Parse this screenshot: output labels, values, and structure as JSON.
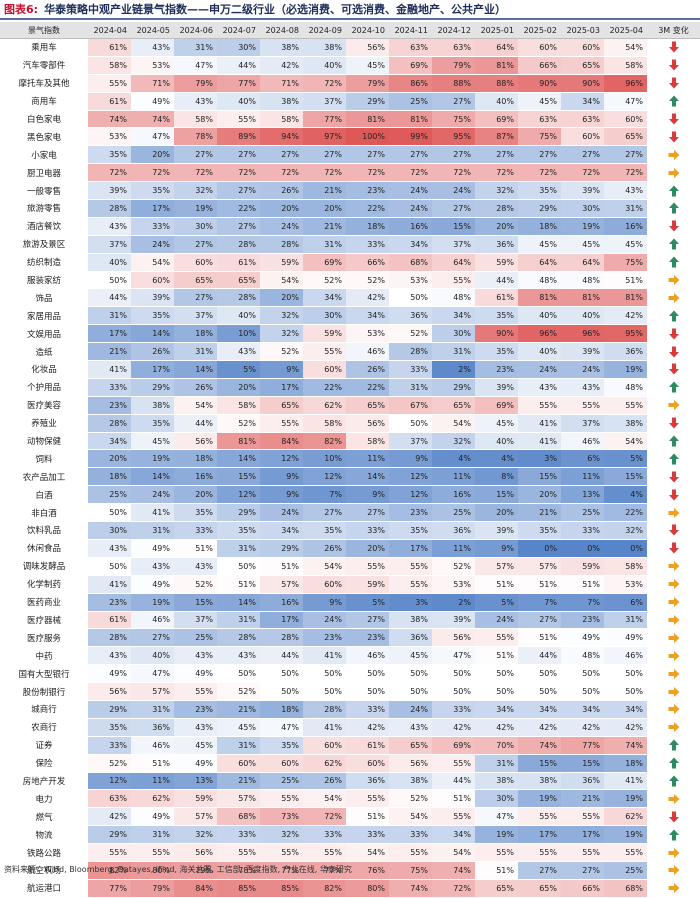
{
  "title": {
    "label": "图表6:",
    "text": "华泰策略中观产业链景气指数——申万二级行业（必选消费、可选消费、金融地产、公共产业）"
  },
  "source": "资料来源：Wind, Bloomberg, Datayes, iFind, 海关总署, 工信部, 百度指数, 产业在线, 华泰研究",
  "header": {
    "name": "景气指数",
    "trend": "3M 变化"
  },
  "colors": {
    "red": "#d93a3a",
    "blue": "#3a6fbf",
    "green": "#2e8a62",
    "orange": "#f0a020"
  },
  "chart_data": {
    "type": "heatmap",
    "title": "华泰策略中观产业链景气指数——申万二级行业（必选消费、可选消费、金融地产、公共产业）",
    "columns": [
      "2024-04",
      "2024-05",
      "2024-06",
      "2024-07",
      "2024-08",
      "2024-09",
      "2024-10",
      "2024-11",
      "2024-12",
      "2025-01",
      "2025-02",
      "2025-03",
      "2025-04"
    ],
    "value_unit": "%",
    "rows": [
      {
        "name": "乘用车",
        "values": [
          61,
          43,
          31,
          30,
          38,
          38,
          56,
          63,
          63,
          64,
          60,
          60,
          54
        ],
        "trend": "down"
      },
      {
        "name": "汽车零部件",
        "values": [
          58,
          53,
          47,
          44,
          42,
          40,
          45,
          69,
          79,
          81,
          66,
          65,
          58
        ],
        "trend": "down"
      },
      {
        "name": "摩托车及其他",
        "values": [
          55,
          71,
          79,
          77,
          71,
          72,
          79,
          86,
          88,
          88,
          90,
          90,
          96
        ],
        "trend": "down"
      },
      {
        "name": "商用车",
        "values": [
          61,
          49,
          43,
          40,
          38,
          37,
          29,
          25,
          27,
          40,
          45,
          34,
          47
        ],
        "trend": "up"
      },
      {
        "name": "白色家电",
        "values": [
          74,
          74,
          58,
          55,
          58,
          77,
          81,
          81,
          75,
          69,
          63,
          63,
          60
        ],
        "trend": "down"
      },
      {
        "name": "黑色家电",
        "values": [
          53,
          47,
          78,
          89,
          94,
          97,
          100,
          99,
          95,
          87,
          75,
          60,
          65
        ],
        "trend": "down"
      },
      {
        "name": "小家电",
        "values": [
          35,
          20,
          27,
          27,
          27,
          27,
          27,
          27,
          27,
          27,
          27,
          27,
          27
        ],
        "trend": "flat"
      },
      {
        "name": "厨卫电器",
        "values": [
          72,
          72,
          72,
          72,
          72,
          72,
          72,
          72,
          72,
          72,
          72,
          72,
          72
        ],
        "trend": "flat"
      },
      {
        "name": "一般零售",
        "values": [
          39,
          35,
          32,
          27,
          26,
          21,
          23,
          24,
          24,
          32,
          35,
          39,
          43
        ],
        "trend": "up"
      },
      {
        "name": "旅游零售",
        "values": [
          28,
          17,
          19,
          22,
          20,
          20,
          22,
          24,
          27,
          28,
          29,
          30,
          31
        ],
        "trend": "up"
      },
      {
        "name": "酒店餐饮",
        "values": [
          43,
          33,
          30,
          27,
          24,
          21,
          18,
          16,
          15,
          20,
          18,
          19,
          16
        ],
        "trend": "down"
      },
      {
        "name": "旅游及景区",
        "values": [
          37,
          24,
          27,
          28,
          28,
          31,
          33,
          34,
          37,
          36,
          45,
          45,
          45
        ],
        "trend": "up"
      },
      {
        "name": "纺织制造",
        "values": [
          40,
          54,
          60,
          61,
          59,
          69,
          66,
          68,
          64,
          59,
          64,
          64,
          75
        ],
        "trend": "up"
      },
      {
        "name": "服装家纺",
        "values": [
          50,
          60,
          65,
          65,
          54,
          52,
          52,
          53,
          55,
          44,
          48,
          48,
          51
        ],
        "trend": "flat"
      },
      {
        "name": "饰品",
        "values": [
          44,
          39,
          27,
          28,
          20,
          34,
          42,
          50,
          48,
          61,
          81,
          81,
          81
        ],
        "trend": "flat"
      },
      {
        "name": "家居用品",
        "values": [
          31,
          35,
          37,
          40,
          32,
          30,
          34,
          36,
          34,
          35,
          40,
          40,
          42
        ],
        "trend": "up"
      },
      {
        "name": "文娱用品",
        "values": [
          17,
          14,
          18,
          10,
          32,
          59,
          53,
          52,
          30,
          90,
          96,
          96,
          95
        ],
        "trend": "down"
      },
      {
        "name": "造纸",
        "values": [
          21,
          26,
          31,
          43,
          52,
          55,
          46,
          28,
          31,
          35,
          40,
          39,
          36
        ],
        "trend": "down"
      },
      {
        "name": "化妆品",
        "values": [
          41,
          17,
          14,
          5,
          9,
          60,
          26,
          33,
          2,
          23,
          24,
          24,
          19
        ],
        "trend": "down"
      },
      {
        "name": "个护用品",
        "values": [
          33,
          29,
          26,
          20,
          17,
          22,
          22,
          31,
          29,
          39,
          43,
          43,
          48
        ],
        "trend": "up"
      },
      {
        "name": "医疗美容",
        "values": [
          23,
          38,
          54,
          58,
          65,
          62,
          65,
          67,
          65,
          69,
          55,
          55,
          55
        ],
        "trend": "flat"
      },
      {
        "name": "养殖业",
        "values": [
          28,
          35,
          44,
          52,
          55,
          58,
          56,
          50,
          54,
          45,
          41,
          37,
          38
        ],
        "trend": "down"
      },
      {
        "name": "动物保健",
        "values": [
          34,
          45,
          56,
          81,
          84,
          82,
          58,
          37,
          32,
          40,
          41,
          46,
          54
        ],
        "trend": "up"
      },
      {
        "name": "饲料",
        "values": [
          20,
          19,
          18,
          14,
          12,
          10,
          11,
          9,
          4,
          4,
          3,
          6,
          5
        ],
        "trend": "up"
      },
      {
        "name": "农产品加工",
        "values": [
          18,
          14,
          16,
          15,
          9,
          12,
          14,
          12,
          11,
          8,
          15,
          11,
          15
        ],
        "trend": "down"
      },
      {
        "name": "白酒",
        "values": [
          25,
          24,
          20,
          12,
          9,
          7,
          9,
          12,
          16,
          15,
          20,
          13,
          4
        ],
        "trend": "down"
      },
      {
        "name": "非白酒",
        "values": [
          50,
          41,
          35,
          29,
          24,
          27,
          27,
          23,
          25,
          20,
          21,
          25,
          22
        ],
        "trend": "flat"
      },
      {
        "name": "饮料乳品",
        "values": [
          30,
          31,
          33,
          35,
          34,
          35,
          33,
          35,
          36,
          39,
          35,
          33,
          32
        ],
        "trend": "down"
      },
      {
        "name": "休闲食品",
        "values": [
          43,
          49,
          51,
          31,
          29,
          26,
          20,
          17,
          11,
          9,
          0,
          0,
          0
        ],
        "trend": "down"
      },
      {
        "name": "调味发酵品",
        "values": [
          50,
          43,
          43,
          50,
          51,
          54,
          55,
          55,
          52,
          57,
          57,
          59,
          58
        ],
        "trend": "flat"
      },
      {
        "name": "化学制药",
        "values": [
          41,
          49,
          52,
          51,
          57,
          60,
          59,
          55,
          53,
          51,
          51,
          51,
          53
        ],
        "trend": "flat"
      },
      {
        "name": "医药商业",
        "values": [
          23,
          19,
          15,
          14,
          16,
          9,
          5,
          3,
          2,
          5,
          7,
          7,
          6
        ],
        "trend": "flat"
      },
      {
        "name": "医疗器械",
        "values": [
          61,
          46,
          37,
          31,
          17,
          24,
          27,
          38,
          39,
          24,
          27,
          23,
          31
        ],
        "trend": "flat"
      },
      {
        "name": "医疗服务",
        "values": [
          28,
          27,
          25,
          28,
          28,
          23,
          23,
          36,
          56,
          55,
          51,
          49,
          49
        ],
        "trend": "flat"
      },
      {
        "name": "中药",
        "values": [
          43,
          40,
          43,
          43,
          44,
          41,
          46,
          45,
          47,
          51,
          44,
          48,
          46
        ],
        "trend": "flat"
      },
      {
        "name": "国有大型银行",
        "values": [
          49,
          47,
          49,
          50,
          50,
          50,
          50,
          50,
          50,
          50,
          50,
          50,
          50
        ],
        "trend": "flat"
      },
      {
        "name": "股份制银行",
        "values": [
          56,
          57,
          55,
          52,
          50,
          50,
          50,
          50,
          50,
          50,
          50,
          50,
          50
        ],
        "trend": "flat"
      },
      {
        "name": "城商行",
        "values": [
          29,
          31,
          23,
          21,
          18,
          28,
          33,
          24,
          33,
          34,
          34,
          34,
          34
        ],
        "trend": "flat"
      },
      {
        "name": "农商行",
        "values": [
          35,
          36,
          43,
          45,
          47,
          41,
          42,
          43,
          42,
          42,
          42,
          42,
          42
        ],
        "trend": "flat"
      },
      {
        "name": "证券",
        "values": [
          33,
          46,
          45,
          31,
          35,
          60,
          61,
          65,
          69,
          70,
          74,
          77,
          74
        ],
        "trend": "up"
      },
      {
        "name": "保险",
        "values": [
          52,
          51,
          49,
          60,
          60,
          62,
          60,
          56,
          55,
          31,
          15,
          15,
          18
        ],
        "trend": "up"
      },
      {
        "name": "房地产开发",
        "values": [
          12,
          11,
          13,
          21,
          25,
          26,
          36,
          38,
          44,
          38,
          38,
          36,
          41
        ],
        "trend": "up"
      },
      {
        "name": "电力",
        "values": [
          63,
          62,
          59,
          57,
          55,
          54,
          55,
          52,
          51,
          30,
          19,
          21,
          19
        ],
        "trend": "flat"
      },
      {
        "name": "燃气",
        "values": [
          42,
          49,
          57,
          68,
          73,
          72,
          51,
          54,
          55,
          47,
          55,
          55,
          62
        ],
        "trend": "down"
      },
      {
        "name": "物流",
        "values": [
          29,
          31,
          32,
          33,
          32,
          33,
          33,
          33,
          34,
          19,
          17,
          17,
          19
        ],
        "trend": "up"
      },
      {
        "name": "铁路公路",
        "values": [
          55,
          55,
          56,
          55,
          55,
          55,
          54,
          55,
          54,
          55,
          55,
          55,
          55
        ],
        "trend": "flat"
      },
      {
        "name": "航空机场",
        "values": [
          82,
          80,
          79,
          78,
          77,
          77,
          76,
          75,
          74,
          51,
          27,
          27,
          25
        ],
        "trend": "flat"
      },
      {
        "name": "航运港口",
        "values": [
          77,
          79,
          84,
          85,
          85,
          82,
          80,
          74,
          72,
          65,
          65,
          66,
          68
        ],
        "trend": "flat"
      }
    ]
  }
}
